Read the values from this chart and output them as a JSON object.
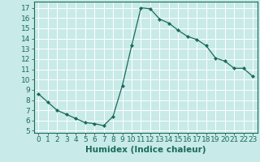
{
  "x": [
    0,
    1,
    2,
    3,
    4,
    5,
    6,
    7,
    8,
    9,
    10,
    11,
    12,
    13,
    14,
    15,
    16,
    17,
    18,
    19,
    20,
    21,
    22,
    23
  ],
  "y": [
    8.6,
    7.8,
    7.0,
    6.6,
    6.2,
    5.8,
    5.7,
    5.5,
    6.4,
    9.4,
    13.3,
    17.0,
    16.9,
    15.9,
    15.5,
    14.8,
    14.2,
    13.9,
    13.3,
    12.1,
    11.8,
    11.1,
    11.1,
    10.3
  ],
  "line_color": "#1a6b5a",
  "marker": "D",
  "marker_size": 2.0,
  "bg_color": "#c8eae8",
  "grid_color": "#ffffff",
  "xlabel": "Humidex (Indice chaleur)",
  "xlim": [
    -0.5,
    23.5
  ],
  "ylim": [
    4.8,
    17.6
  ],
  "yticks": [
    5,
    6,
    7,
    8,
    9,
    10,
    11,
    12,
    13,
    14,
    15,
    16,
    17
  ],
  "xticks": [
    0,
    1,
    2,
    3,
    4,
    5,
    6,
    7,
    8,
    9,
    10,
    11,
    12,
    13,
    14,
    15,
    16,
    17,
    18,
    19,
    20,
    21,
    22,
    23
  ],
  "tick_fontsize": 6.5,
  "label_fontsize": 7.5
}
